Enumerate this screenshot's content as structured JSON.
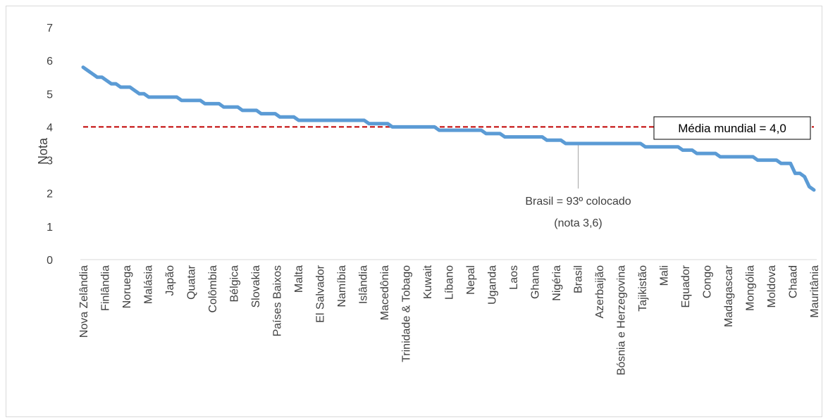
{
  "chart_data": {
    "type": "line",
    "title": "",
    "xlabel": "",
    "ylabel": "Nota",
    "ylim": [
      0,
      7
    ],
    "yticks": [
      "0",
      "1",
      "2",
      "3",
      "4",
      "5",
      "6",
      "7"
    ],
    "grid": false,
    "x_labels": [
      "Nova Zelândia",
      "Finlândia",
      "Noruega",
      "Malásia",
      "Japão",
      "Quatar",
      "Colômbia",
      "Bélgica",
      "Slovakia",
      "Países Baixos",
      "Malta",
      "El Salvador",
      "Namíbia",
      "Islândia",
      "Macedônia",
      "Trinidade & Tobago",
      "Kuwait",
      "Líbano",
      "Nepal",
      "Uganda",
      "Laos",
      "Ghana",
      "Nigéria",
      "Brasil",
      "Azerbaijão",
      "Bósnia e Herzegovina",
      "Tajikistão",
      "Mali",
      "Equador",
      "Congo",
      "Madagascar",
      "Mongólia",
      "Moldova",
      "Chaad",
      "Mauritânia"
    ],
    "series": [
      {
        "color": "#5b9bd5",
        "values": [
          5.8,
          5.7,
          5.6,
          5.5,
          5.5,
          5.4,
          5.3,
          5.3,
          5.2,
          5.2,
          5.2,
          5.1,
          5.0,
          5.0,
          4.9,
          4.9,
          4.9,
          4.9,
          4.9,
          4.9,
          4.9,
          4.8,
          4.8,
          4.8,
          4.8,
          4.8,
          4.7,
          4.7,
          4.7,
          4.7,
          4.6,
          4.6,
          4.6,
          4.6,
          4.5,
          4.5,
          4.5,
          4.5,
          4.4,
          4.4,
          4.4,
          4.4,
          4.3,
          4.3,
          4.3,
          4.3,
          4.2,
          4.2,
          4.2,
          4.2,
          4.2,
          4.2,
          4.2,
          4.2,
          4.2,
          4.2,
          4.2,
          4.2,
          4.2,
          4.2,
          4.2,
          4.1,
          4.1,
          4.1,
          4.1,
          4.1,
          4.0,
          4.0,
          4.0,
          4.0,
          4.0,
          4.0,
          4.0,
          4.0,
          4.0,
          4.0,
          3.9,
          3.9,
          3.9,
          3.9,
          3.9,
          3.9,
          3.9,
          3.9,
          3.9,
          3.9,
          3.8,
          3.8,
          3.8,
          3.8,
          3.7,
          3.7,
          3.7,
          3.7,
          3.7,
          3.7,
          3.7,
          3.7,
          3.7,
          3.6,
          3.6,
          3.6,
          3.6,
          3.5,
          3.5,
          3.5,
          3.5,
          3.5,
          3.5,
          3.5,
          3.5,
          3.5,
          3.5,
          3.5,
          3.5,
          3.5,
          3.5,
          3.5,
          3.5,
          3.5,
          3.4,
          3.4,
          3.4,
          3.4,
          3.4,
          3.4,
          3.4,
          3.4,
          3.3,
          3.3,
          3.3,
          3.2,
          3.2,
          3.2,
          3.2,
          3.2,
          3.1,
          3.1,
          3.1,
          3.1,
          3.1,
          3.1,
          3.1,
          3.1,
          3.0,
          3.0,
          3.0,
          3.0,
          3.0,
          2.9,
          2.9,
          2.9,
          2.6,
          2.6,
          2.5,
          2.2,
          2.1
        ]
      }
    ],
    "reference_line": {
      "value": 4.0,
      "color": "#c00000",
      "label": "Média mundial = 4,0"
    },
    "annotations": [
      {
        "label_value": "Brasil",
        "point_value": 3.6,
        "lines": [
          "Brasil = 93º colocado",
          "(nota 3,6)"
        ]
      }
    ]
  }
}
